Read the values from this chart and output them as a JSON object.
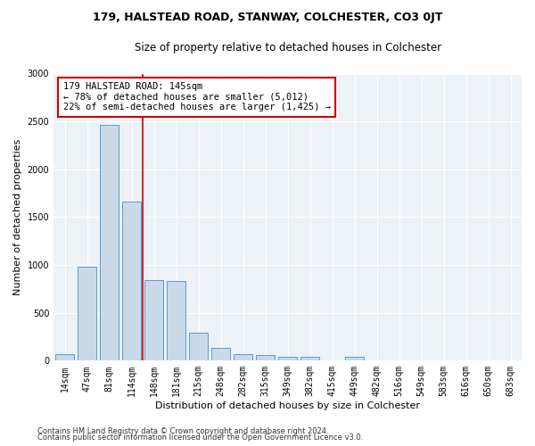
{
  "title": "179, HALSTEAD ROAD, STANWAY, COLCHESTER, CO3 0JT",
  "subtitle": "Size of property relative to detached houses in Colchester",
  "xlabel": "Distribution of detached houses by size in Colchester",
  "ylabel": "Number of detached properties",
  "footnote1": "Contains HM Land Registry data © Crown copyright and database right 2024.",
  "footnote2": "Contains public sector information licensed under the Open Government Licence v3.0.",
  "annotation_line1": "179 HALSTEAD ROAD: 145sqm",
  "annotation_line2": "← 78% of detached houses are smaller (5,012)",
  "annotation_line3": "22% of semi-detached houses are larger (1,425) →",
  "bar_color": "#c9d9e8",
  "bar_edge_color": "#5b9bd5",
  "vline_color": "#cc0000",
  "bg_color": "#edf2f7",
  "categories": [
    "14sqm",
    "47sqm",
    "81sqm",
    "114sqm",
    "148sqm",
    "181sqm",
    "215sqm",
    "248sqm",
    "282sqm",
    "315sqm",
    "349sqm",
    "382sqm",
    "415sqm",
    "449sqm",
    "482sqm",
    "516sqm",
    "549sqm",
    "583sqm",
    "616sqm",
    "650sqm",
    "683sqm"
  ],
  "values": [
    70,
    980,
    2460,
    1660,
    840,
    830,
    290,
    130,
    65,
    55,
    45,
    40,
    0,
    45,
    0,
    0,
    0,
    0,
    0,
    0,
    0
  ],
  "ylim": [
    0,
    3000
  ],
  "yticks": [
    0,
    500,
    1000,
    1500,
    2000,
    2500,
    3000
  ],
  "vline_pos": 3.5,
  "title_fontsize": 9,
  "subtitle_fontsize": 8.5,
  "ylabel_fontsize": 8,
  "xlabel_fontsize": 8,
  "tick_fontsize": 7,
  "footnote_fontsize": 6
}
